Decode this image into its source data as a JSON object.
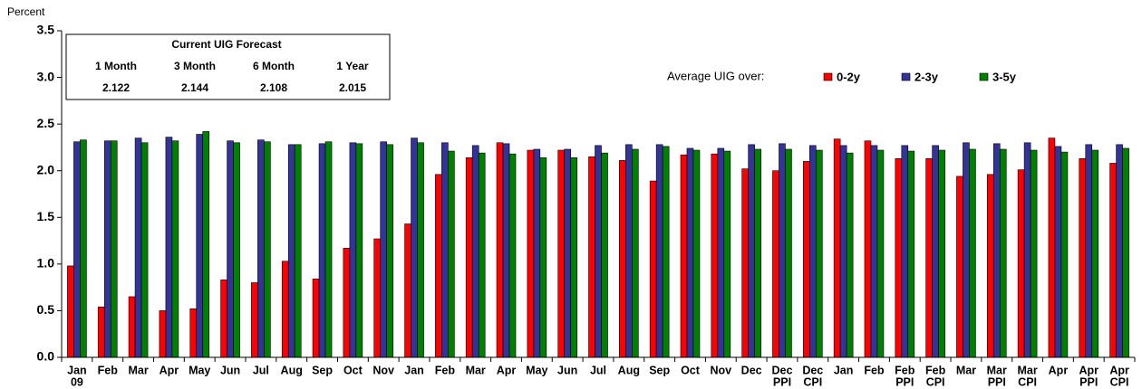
{
  "chart_data": {
    "type": "bar",
    "y_axis_label": "Percent",
    "categories": [
      "Jan",
      "Feb",
      "Mar",
      "Apr",
      "May",
      "Jun",
      "Jul",
      "Aug",
      "Sep",
      "Oct",
      "Nov",
      "Jan",
      "Feb",
      "Mar",
      "Apr",
      "May",
      "Jun",
      "Jul",
      "Aug",
      "Sep",
      "Oct",
      "Nov",
      "Dec",
      "Dec",
      "Dec",
      "Jan",
      "Feb",
      "Feb",
      "Feb",
      "Mar",
      "Mar",
      "Mar",
      "Apr",
      "Apr",
      "Apr"
    ],
    "category_sublabels": [
      "09",
      null,
      null,
      null,
      null,
      null,
      null,
      null,
      null,
      null,
      null,
      null,
      null,
      null,
      null,
      null,
      null,
      null,
      null,
      null,
      null,
      null,
      null,
      "PPI",
      "CPI",
      null,
      null,
      "PPI",
      "CPI",
      null,
      "PPI",
      "CPI",
      null,
      "PPI",
      "CPI"
    ],
    "series": [
      {
        "name": "0-2y",
        "color": "#ff0000",
        "values": [
          0.98,
          0.54,
          0.65,
          0.5,
          0.52,
          0.83,
          0.8,
          1.03,
          0.84,
          1.17,
          1.27,
          1.43,
          1.96,
          2.14,
          2.3,
          2.22,
          2.22,
          2.15,
          2.11,
          1.89,
          2.17,
          2.18,
          2.02,
          2.0,
          2.1,
          2.34,
          2.32,
          2.13,
          2.13,
          1.94,
          1.96,
          2.01,
          2.35,
          2.13,
          2.08
        ]
      },
      {
        "name": "2-3y",
        "color": "#333399",
        "values": [
          2.31,
          2.32,
          2.35,
          2.36,
          2.39,
          2.32,
          2.33,
          2.28,
          2.29,
          2.3,
          2.31,
          2.35,
          2.3,
          2.27,
          2.29,
          2.23,
          2.23,
          2.27,
          2.28,
          2.28,
          2.24,
          2.24,
          2.28,
          2.29,
          2.27,
          2.27,
          2.27,
          2.27,
          2.27,
          2.3,
          2.29,
          2.3,
          2.26,
          2.28,
          2.28
        ]
      },
      {
        "name": "3-5y",
        "color": "#008000",
        "values": [
          2.33,
          2.32,
          2.3,
          2.32,
          2.42,
          2.3,
          2.31,
          2.28,
          2.31,
          2.29,
          2.28,
          2.3,
          2.21,
          2.19,
          2.18,
          2.14,
          2.14,
          2.19,
          2.23,
          2.26,
          2.22,
          2.21,
          2.23,
          2.23,
          2.22,
          2.19,
          2.22,
          2.21,
          2.22,
          2.23,
          2.23,
          2.22,
          2.2,
          2.22,
          2.24
        ]
      }
    ],
    "ylim": [
      0,
      3.5
    ],
    "yticks": [
      {
        "value": 0,
        "label": "0.0"
      },
      0.5,
      {
        "value": 1,
        "label": "1.0"
      },
      1.5,
      {
        "value": 2,
        "label": "2.0"
      },
      2.5,
      {
        "value": 3,
        "label": "3.0"
      },
      3.5
    ],
    "grid": false,
    "legend_title": "Average UIG over:",
    "legend_position": "top-right",
    "forecast_box": {
      "title": "Current UIG Forecast",
      "headers": [
        "1 Month",
        "3 Month",
        "6 Month",
        "1 Year"
      ],
      "values": [
        2.122,
        2.144,
        2.108,
        2.015
      ]
    }
  }
}
